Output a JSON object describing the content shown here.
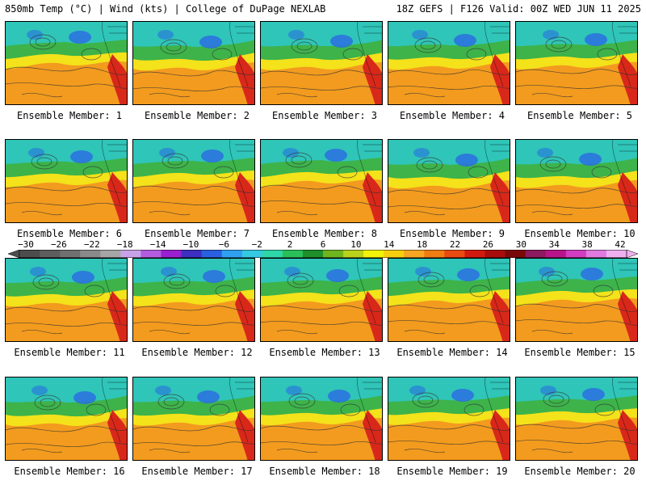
{
  "title": {
    "left": "850mb Temp (°C) | Wind (kts) | College of DuPage NEXLAB",
    "right": "18Z GEFS | F126 Valid: 00Z WED JUN 11 2025"
  },
  "members": [
    "Ensemble Member: 1",
    "Ensemble Member: 2",
    "Ensemble Member: 3",
    "Ensemble Member: 4",
    "Ensemble Member: 5",
    "Ensemble Member: 6",
    "Ensemble Member: 7",
    "Ensemble Member: 8",
    "Ensemble Member: 9",
    "Ensemble Member: 10",
    "Ensemble Member: 11",
    "Ensemble Member: 12",
    "Ensemble Member: 13",
    "Ensemble Member: 14",
    "Ensemble Member: 15",
    "Ensemble Member: 16",
    "Ensemble Member: 17",
    "Ensemble Member: 18",
    "Ensemble Member: 19",
    "Ensemble Member: 20"
  ],
  "colorbar": {
    "labels": [
      "−30",
      "−26",
      "−22",
      "−18",
      "−14",
      "−10",
      "−6",
      "−2",
      "2",
      "6",
      "10",
      "14",
      "18",
      "22",
      "26",
      "30",
      "34",
      "38",
      "42"
    ],
    "colors": [
      "#4d4d4d",
      "#5e5e5e",
      "#707070",
      "#8a8a8a",
      "#a6a6a6",
      "#c8a2e8",
      "#b35ce0",
      "#9a1fd0",
      "#3d2fc0",
      "#2a5fe0",
      "#2f9ff0",
      "#34c9e0",
      "#2fd6a8",
      "#2bbf5a",
      "#1e8f2a",
      "#6fb51e",
      "#b9d11a",
      "#f2f20a",
      "#f6cf0f",
      "#f5a623",
      "#f07c14",
      "#e84a12",
      "#d01a10",
      "#a80c0c",
      "#7a0808",
      "#8b1a5e",
      "#b8148a",
      "#d23cc0",
      "#e07ae0",
      "#f0b0f0"
    ]
  },
  "map_colors": {
    "warm": "#f39b1e",
    "yellow": "#f4e21a",
    "green": "#3db34a",
    "teal": "#2fc5b8",
    "blue": "#2a6fe0",
    "hot": "#d8281a"
  }
}
